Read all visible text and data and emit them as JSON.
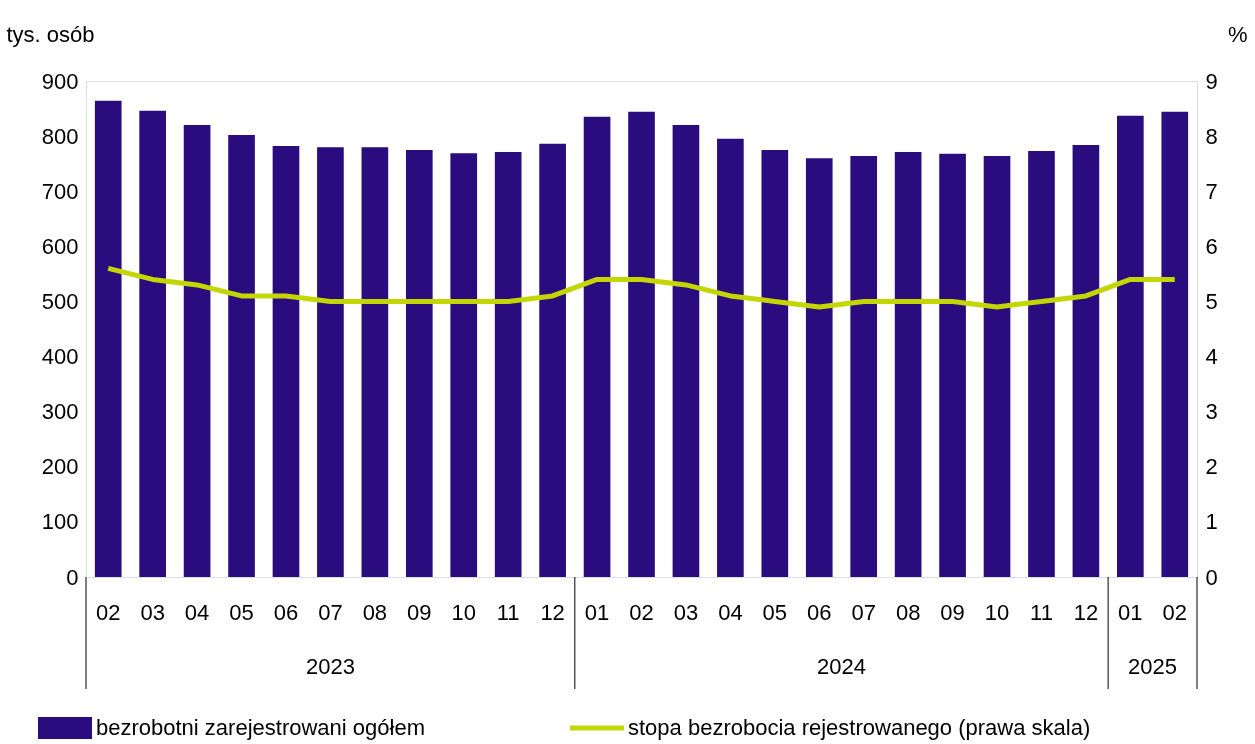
{
  "chart_data": {
    "type": "bar",
    "ylabel": "tys. osób",
    "y2label": "%",
    "categories": [
      "02",
      "03",
      "04",
      "05",
      "06",
      "07",
      "08",
      "09",
      "10",
      "11",
      "12",
      "01",
      "02",
      "03",
      "04",
      "05",
      "06",
      "07",
      "08",
      "09",
      "10",
      "11",
      "12",
      "01",
      "02"
    ],
    "annotations": [
      "2023",
      "2024",
      "2025"
    ],
    "series": [
      {
        "name": "bezrobotni zarejestrowani ogółem",
        "color": "#2b0c7f",
        "values": [
          864,
          846,
          820,
          802,
          782,
          780,
          780,
          775,
          769,
          771,
          786,
          835,
          844,
          820,
          795,
          775,
          760,
          764,
          771,
          768,
          764,
          773,
          784,
          837,
          844
        ]
      },
      {
        "name": "stopa bezrobocia rejestrowanego (prawa skala)",
        "type": "line",
        "axis": "y2",
        "color": "#c3d600",
        "values": [
          5.6,
          5.4,
          5.3,
          5.1,
          5.1,
          5.0,
          5.0,
          5.0,
          5.0,
          5.0,
          5.1,
          5.4,
          5.4,
          5.3,
          5.1,
          5.0,
          4.9,
          5.0,
          5.0,
          5.0,
          4.9,
          5.0,
          5.1,
          5.4,
          5.4
        ]
      }
    ],
    "ylim": [
      0,
      900
    ],
    "yticks": [
      0,
      100,
      200,
      300,
      400,
      500,
      600,
      700,
      800,
      900
    ],
    "y2lim": [
      0,
      9
    ],
    "y2ticks": [
      0,
      1,
      2,
      3,
      4,
      5,
      6,
      7,
      8,
      9
    ],
    "grid": false,
    "legend": "bottom",
    "marker": "none",
    "line_style": "solid"
  }
}
